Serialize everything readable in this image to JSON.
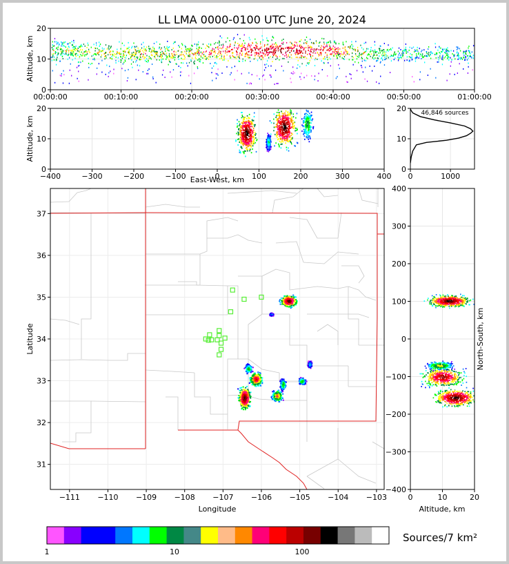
{
  "chart_data": [
    {
      "type": "heatmap",
      "panel": "altitude-time",
      "title": "LL LMA 0000-0100 UTC June 20, 2024",
      "ylabel": "Altitude, km",
      "xlabel": "",
      "ylim": [
        0,
        20
      ],
      "yticks": [
        "0",
        "10",
        "20"
      ],
      "xticks": [
        "00:00:00",
        "00:10:00",
        "00:20:00",
        "00:30:00",
        "00:40:00",
        "00:50:00",
        "01:00:00"
      ],
      "xlim_minutes": [
        0,
        60
      ],
      "density_envelope": {
        "x_minutes": [
          0,
          10,
          20,
          25,
          30,
          35,
          40,
          45,
          50,
          55,
          60
        ],
        "alt_low_km": [
          7,
          8,
          7,
          6,
          6,
          7,
          7,
          8,
          9,
          9,
          9
        ],
        "alt_high_km": [
          19,
          19,
          19,
          20,
          20,
          20,
          19,
          19,
          18,
          18,
          18
        ],
        "core_alt_km": [
          13,
          12,
          12,
          13,
          13,
          13,
          13,
          12,
          12,
          12,
          12
        ],
        "intensity": [
          0.5,
          0.55,
          0.6,
          0.8,
          0.95,
          0.95,
          0.75,
          0.5,
          0.3,
          0.35,
          0.3
        ]
      }
    },
    {
      "type": "heatmap",
      "panel": "altitude-eastwest",
      "xlabel": "East-West, km",
      "ylabel": "Altitude, km",
      "xlim": [
        -400,
        400
      ],
      "ylim": [
        0,
        20
      ],
      "xticks": [
        "−400",
        "−300",
        "−200",
        "−100",
        "0",
        "100",
        "200",
        "300",
        "400"
      ],
      "yticks": [
        "0",
        "10",
        "20"
      ],
      "clusters": [
        {
          "x_km": 70,
          "alt_km": 12,
          "spread_x_km": 18,
          "spread_alt_km": 5,
          "peak": 1.0
        },
        {
          "x_km": 160,
          "alt_km": 14,
          "spread_x_km": 22,
          "spread_alt_km": 5,
          "peak": 1.0
        },
        {
          "x_km": 215,
          "alt_km": 15,
          "spread_x_km": 10,
          "spread_alt_km": 4,
          "peak": 0.5
        },
        {
          "x_km": 122,
          "alt_km": 9,
          "spread_x_km": 5,
          "spread_alt_km": 2,
          "peak": 0.4
        }
      ]
    },
    {
      "type": "line",
      "panel": "altitude-histogram",
      "annotation": "46,846 sources",
      "xlim": [
        0,
        1600
      ],
      "ylim": [
        0,
        20
      ],
      "xticks": [
        "0",
        "1000"
      ],
      "yticks": [
        "0",
        "10",
        "20"
      ],
      "x": [
        0,
        20,
        60,
        150,
        400,
        900,
        1200,
        1400,
        1500,
        1560,
        1500,
        1350,
        1000,
        600,
        250,
        60,
        10,
        0
      ],
      "y": [
        2,
        4,
        6,
        8,
        8.8,
        9.5,
        10.2,
        11,
        11.8,
        12.5,
        13.3,
        14.2,
        15.2,
        16.2,
        17.3,
        18.5,
        19.5,
        20
      ]
    },
    {
      "type": "heatmap",
      "panel": "plan-view",
      "xlabel": "Longitude",
      "ylabel": "Latitude",
      "xlim": [
        -111.5,
        -102.8
      ],
      "ylim": [
        30.4,
        37.6
      ],
      "xticks": [
        "−111",
        "−110",
        "−109",
        "−108",
        "−107",
        "−106",
        "−105",
        "−104",
        "−103"
      ],
      "yticks": [
        "31",
        "32",
        "33",
        "34",
        "35",
        "36",
        "37"
      ],
      "clusters": [
        {
          "lon": -105.3,
          "lat": 34.92,
          "spread_lon": 0.15,
          "spread_lat": 0.1,
          "peak": 1.0
        },
        {
          "lon": -106.45,
          "lat": 32.6,
          "spread_lon": 0.12,
          "spread_lat": 0.2,
          "peak": 1.0
        },
        {
          "lon": -106.15,
          "lat": 33.05,
          "spread_lon": 0.12,
          "spread_lat": 0.12,
          "peak": 0.85
        },
        {
          "lon": -106.35,
          "lat": 33.3,
          "spread_lon": 0.07,
          "spread_lat": 0.08,
          "peak": 0.5
        },
        {
          "lon": -105.6,
          "lat": 32.65,
          "spread_lon": 0.1,
          "spread_lat": 0.1,
          "peak": 0.7
        },
        {
          "lon": -105.45,
          "lat": 32.92,
          "spread_lon": 0.06,
          "spread_lat": 0.1,
          "peak": 0.5
        },
        {
          "lon": -104.95,
          "lat": 33.0,
          "spread_lon": 0.07,
          "spread_lat": 0.06,
          "peak": 0.5
        },
        {
          "lon": -104.75,
          "lat": 33.4,
          "spread_lon": 0.04,
          "spread_lat": 0.06,
          "peak": 0.35
        },
        {
          "lon": -105.75,
          "lat": 34.6,
          "spread_lon": 0.04,
          "spread_lat": 0.03,
          "peak": 0.3
        }
      ],
      "stations": [
        {
          "lon": -106.75,
          "lat": 35.17
        },
        {
          "lon": -106.45,
          "lat": 34.95
        },
        {
          "lon": -106.0,
          "lat": 35.0
        },
        {
          "lon": -106.8,
          "lat": 34.65
        },
        {
          "lon": -107.1,
          "lat": 34.2
        },
        {
          "lon": -107.35,
          "lat": 34.1
        },
        {
          "lon": -107.1,
          "lat": 34.08
        },
        {
          "lon": -107.45,
          "lat": 34.0
        },
        {
          "lon": -107.3,
          "lat": 33.98
        },
        {
          "lon": -107.15,
          "lat": 33.98
        },
        {
          "lon": -106.95,
          "lat": 34.02
        },
        {
          "lon": -107.05,
          "lat": 33.9
        },
        {
          "lon": -107.05,
          "lat": 33.75
        },
        {
          "lon": -107.1,
          "lat": 33.62
        },
        {
          "lon": -107.38,
          "lat": 33.97
        }
      ]
    },
    {
      "type": "heatmap",
      "panel": "northsouth-altitude",
      "xlabel": "Altitude, km",
      "ylabel": "North-South, km",
      "xlim": [
        0,
        20
      ],
      "ylim": [
        -400,
        400
      ],
      "xticks": [
        "0",
        "10",
        "20"
      ],
      "yticks": [
        "−400",
        "−300",
        "−200",
        "−100",
        "0",
        "100",
        "200",
        "300",
        "400"
      ],
      "clusters": [
        {
          "alt_km": 12,
          "ns_km": 102,
          "spread_alt_km": 5,
          "spread_ns_km": 12,
          "peak": 1.0
        },
        {
          "alt_km": 10,
          "ns_km": -100,
          "spread_alt_km": 5,
          "spread_ns_km": 20,
          "peak": 0.9
        },
        {
          "alt_km": 14,
          "ns_km": -155,
          "spread_alt_km": 5,
          "spread_ns_km": 18,
          "peak": 1.0
        },
        {
          "alt_km": 9,
          "ns_km": -70,
          "spread_alt_km": 3,
          "spread_ns_km": 8,
          "peak": 0.6
        }
      ]
    }
  ],
  "colorbar": {
    "label": "Sources/7 km²",
    "ticks": [
      "1",
      "10",
      "100"
    ],
    "colors": [
      "#ff55ff",
      "#8800ff",
      "#0000ff",
      "#0000ff",
      "#0077ff",
      "#00ffff",
      "#00ff00",
      "#008844",
      "#448888",
      "#ffff00",
      "#ffbb88",
      "#ff8800",
      "#ff0077",
      "#ff0000",
      "#bb0000",
      "#770000",
      "#000000",
      "#777777",
      "#bbbbbb",
      "#ffffff"
    ]
  }
}
